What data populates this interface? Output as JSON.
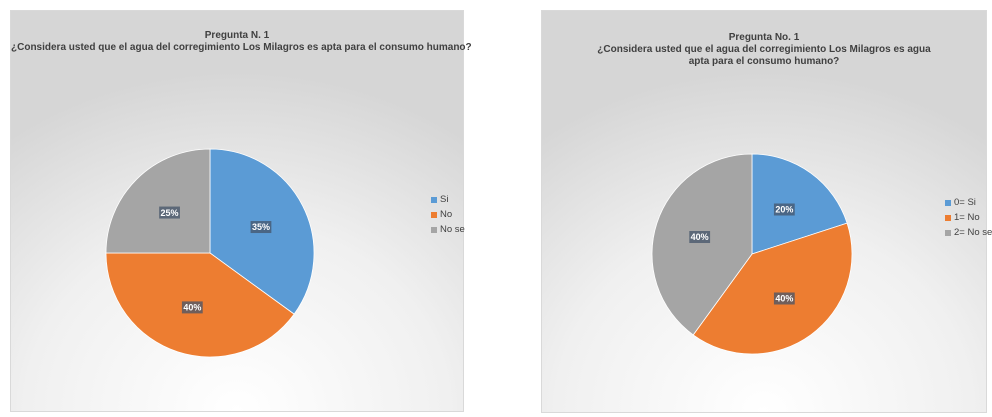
{
  "charts": [
    {
      "title_line1": "Pregunta N. 1",
      "title_line2": "¿Considera usted que el agua del corregimiento Los Milagros es apta para el consumo humano?"
    },
    {
      "title_line1": "Pregunta No. 1",
      "title_line2": "¿Considera usted que el agua del corregimiento Los Milagros es agua apta para el consumo humano?"
    }
  ],
  "chart_data": [
    {
      "type": "pie",
      "title": "Pregunta N. 1 ¿Considera usted que el agua del corregimiento Los Milagros es apta para el consumo humano?",
      "categories": [
        "Si",
        "No",
        "No se"
      ],
      "values": [
        35,
        40,
        25
      ],
      "data_labels": [
        "35%",
        "40%",
        "25%"
      ],
      "colors": [
        "#5b9bd5",
        "#ed7d31",
        "#a5a5a5"
      ],
      "legend": "right"
    },
    {
      "type": "pie",
      "title": "Pregunta No. 1 ¿Considera usted que el agua del corregimiento Los Milagros es agua apta para el consumo humano?",
      "categories": [
        "0= Si",
        "1= No",
        "2= No se"
      ],
      "values": [
        20,
        40,
        40
      ],
      "data_labels": [
        "20%",
        "40%",
        "40%"
      ],
      "colors": [
        "#5b9bd5",
        "#ed7d31",
        "#a5a5a5"
      ],
      "legend": "right"
    }
  ]
}
